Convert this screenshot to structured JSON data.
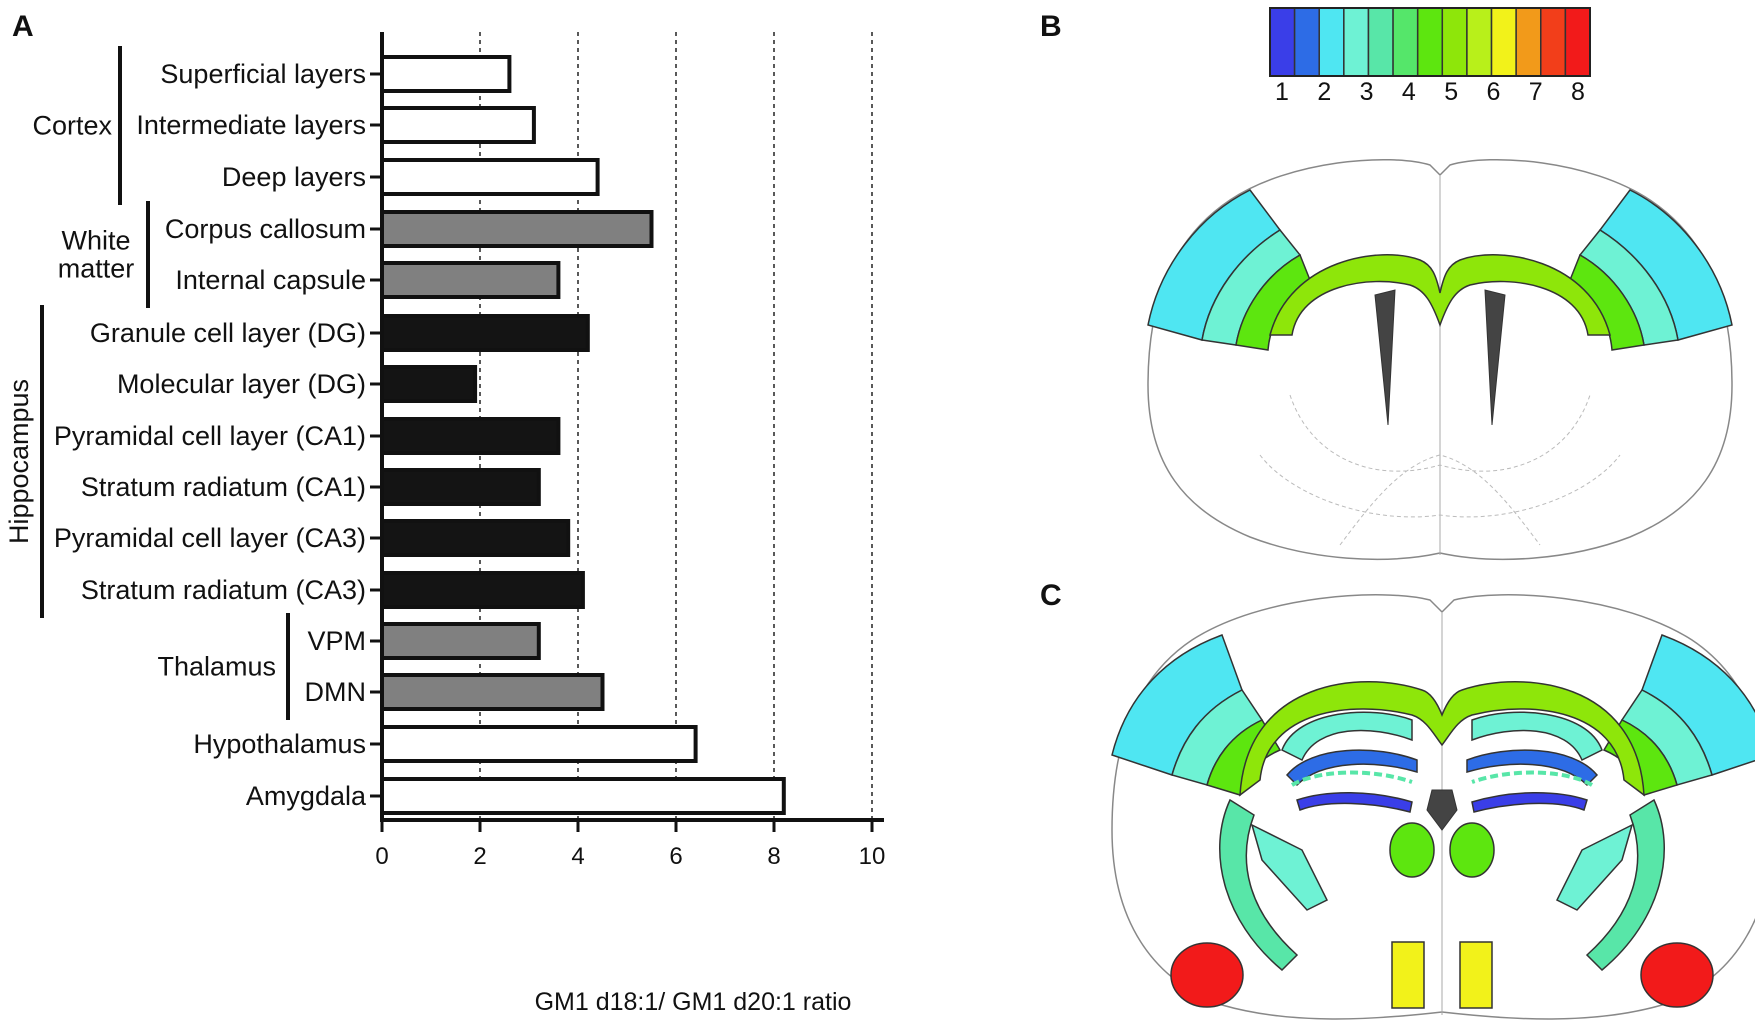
{
  "panels": {
    "a": "A",
    "b": "B",
    "c": "C"
  },
  "chart_data": {
    "type": "bar",
    "orientation": "horizontal",
    "title": "",
    "xlabel": "GM1 d18:1/ GM1 d20:1 ratio",
    "ylabel": "",
    "xlim": [
      0,
      10
    ],
    "xticks": [
      0,
      2,
      4,
      6,
      8,
      10
    ],
    "grid": "vertical dotted lines at 2, 4, 6, 8, 10",
    "categories": [
      "Superficial layers",
      "Intermediate layers",
      "Deep layers",
      "Corpus callosum",
      "Internal capsule",
      "Granule cell layer (DG)",
      "Molecular layer (DG)",
      "Pyramidal cell layer (CA1)",
      "Stratum radiatum (CA1)",
      "Pyramidal cell layer (CA3)",
      "Stratum radiatum (CA3)",
      "VPM",
      "DMN",
      "Hypothalamus",
      "Amygdala"
    ],
    "values": [
      2.6,
      3.1,
      4.4,
      5.5,
      3.6,
      4.2,
      1.9,
      3.6,
      3.2,
      3.8,
      4.1,
      3.2,
      4.5,
      6.4,
      8.2
    ],
    "fills": [
      "#ffffff",
      "#ffffff",
      "#ffffff",
      "#808080",
      "#808080",
      "#141414",
      "#141414",
      "#141414",
      "#141414",
      "#141414",
      "#141414",
      "#808080",
      "#808080",
      "#ffffff",
      "#ffffff"
    ],
    "groups": [
      {
        "name": "Cortex",
        "from": 0,
        "to": 2
      },
      {
        "name": "White\nmatter",
        "from": 3,
        "to": 4
      },
      {
        "name": "Hippocampus",
        "from": 5,
        "to": 10,
        "rotated": true
      },
      {
        "name": "Thalamus",
        "from": 11,
        "to": 12
      }
    ]
  },
  "colorbar": {
    "labels": [
      "1",
      "2",
      "3",
      "4",
      "5",
      "6",
      "7",
      "8"
    ],
    "colors": [
      "#3a3ee8",
      "#2d6ce6",
      "#4fe6f2",
      "#6ef2d4",
      "#58e6a8",
      "#55e66a",
      "#5de60f",
      "#8ee60a",
      "#b8f01a",
      "#f2f21a",
      "#f29a1a",
      "#f23e1a",
      "#f21a1a"
    ]
  },
  "region_colors": {
    "cortex_superficial": "#4fe6f2",
    "cortex_intermediate": "#6ef2d4",
    "cortex_deep": "#5de60f",
    "corpus_callosum": "#8ee60a",
    "internal_capsule": "#6ef2d4",
    "hipp_green": "#58e6a8",
    "hipp_blue": "#2d6ce6",
    "hipp_mol": "#9ef2d4",
    "vpm_dmn": "#5de60f",
    "hypothalamus": "#f2f21a",
    "amygdala": "#f21a1a",
    "ventricle": "#444444"
  }
}
